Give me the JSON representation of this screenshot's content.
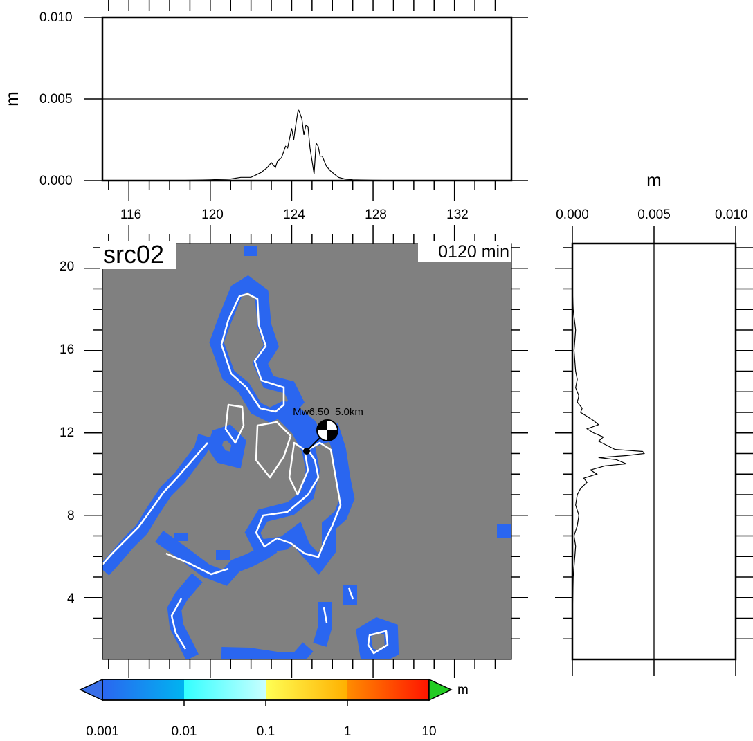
{
  "map": {
    "label": "src02",
    "time_label": "0120 min",
    "source_label": "Mw6.50_5.0km",
    "x_ticks": [
      "116",
      "120",
      "124",
      "128",
      "132"
    ],
    "y_ticks": [
      "20",
      "16",
      "12",
      "8",
      "4"
    ]
  },
  "top_profile": {
    "unit_label": "m",
    "y_ticks": [
      "0.010",
      "0.005",
      "0.000"
    ]
  },
  "right_profile": {
    "unit_label": "m",
    "x_ticks": [
      "0.000",
      "0.005",
      "0.010"
    ]
  },
  "colorbar": {
    "unit_label": "m",
    "tick_labels": [
      "0.001",
      "0.01",
      "0.1",
      "1",
      "10"
    ],
    "under_color": "#3a6fe8",
    "over_color": "#22cc22",
    "segments": [
      {
        "from": "#2a66f0",
        "to": "#00b4f0"
      },
      {
        "from": "#33ffff",
        "to": "#c8ffff"
      },
      {
        "from": "#ffff55",
        "to": "#ffb000"
      },
      {
        "from": "#ff8c00",
        "to": "#ff1400"
      }
    ]
  },
  "colors": {
    "sea": "#808080",
    "land_outline": "#ffffff",
    "wave_band": "#2a66f0"
  },
  "chart_data": [
    {
      "type": "line",
      "title": "",
      "ylabel": "m",
      "xlim": [
        114.7,
        134.8
      ],
      "ylim": [
        0,
        0.01
      ],
      "x": [
        114.7,
        116,
        118,
        119,
        120,
        121,
        121.5,
        122,
        122.5,
        122.8,
        123,
        123.2,
        123.3,
        123.5,
        123.7,
        123.8,
        124,
        124.1,
        124.2,
        124.3,
        124.35,
        124.5,
        124.6,
        124.7,
        124.8,
        124.9,
        125,
        125.1,
        125.2,
        125.3,
        125.4,
        125.5,
        125.7,
        125.9,
        126.1,
        126.3,
        126.6,
        127,
        128,
        130,
        132,
        134.8
      ],
      "values": [
        0.0,
        0.0,
        0.0,
        2e-05,
        5e-05,
        0.0001,
        0.0002,
        0.0002,
        0.0005,
        0.0008,
        0.0011,
        0.0008,
        0.0012,
        0.0014,
        0.0021,
        0.002,
        0.0032,
        0.0025,
        0.0034,
        0.0042,
        0.0043,
        0.0038,
        0.0028,
        0.0034,
        0.0033,
        0.002,
        0.0012,
        0.0004,
        0.0023,
        0.0021,
        0.0015,
        0.0015,
        0.0009,
        0.0006,
        0.0004,
        0.0002,
        0.0001,
        5e-05,
        2e-05,
        0.0,
        0.0,
        0.0
      ]
    },
    {
      "type": "line",
      "title": "",
      "xlabel": "m",
      "xlim": [
        0,
        0.01
      ],
      "ylim": [
        1,
        21.2
      ],
      "y": [
        1,
        3,
        5,
        6.5,
        7,
        7.5,
        8,
        8.5,
        9,
        9.3,
        9.6,
        9.8,
        10,
        10.2,
        10.4,
        10.5,
        10.7,
        10.8,
        10.9,
        11.0,
        11.1,
        11.2,
        11.4,
        11.6,
        11.8,
        12,
        12.2,
        12.4,
        12.6,
        12.8,
        13.0,
        13.2,
        13.5,
        13.8,
        14.2,
        14.6,
        15,
        16,
        17,
        18,
        19,
        20,
        21.2
      ],
      "values": [
        0.0,
        0.0,
        5e-05,
        0.0002,
        0.0001,
        0.0003,
        0.0004,
        0.0002,
        0.0003,
        0.0005,
        0.0009,
        0.0007,
        0.0015,
        0.0011,
        0.002,
        0.0033,
        0.0027,
        0.0016,
        0.0033,
        0.0044,
        0.0043,
        0.0026,
        0.0021,
        0.0016,
        0.0019,
        0.0013,
        0.0009,
        0.0016,
        0.0013,
        0.0009,
        0.0005,
        0.0006,
        0.0003,
        0.0004,
        0.0002,
        0.0003,
        0.0002,
        0.0001,
        0.0002,
        5e-05,
        0.0,
        0.0,
        0.0
      ]
    }
  ]
}
